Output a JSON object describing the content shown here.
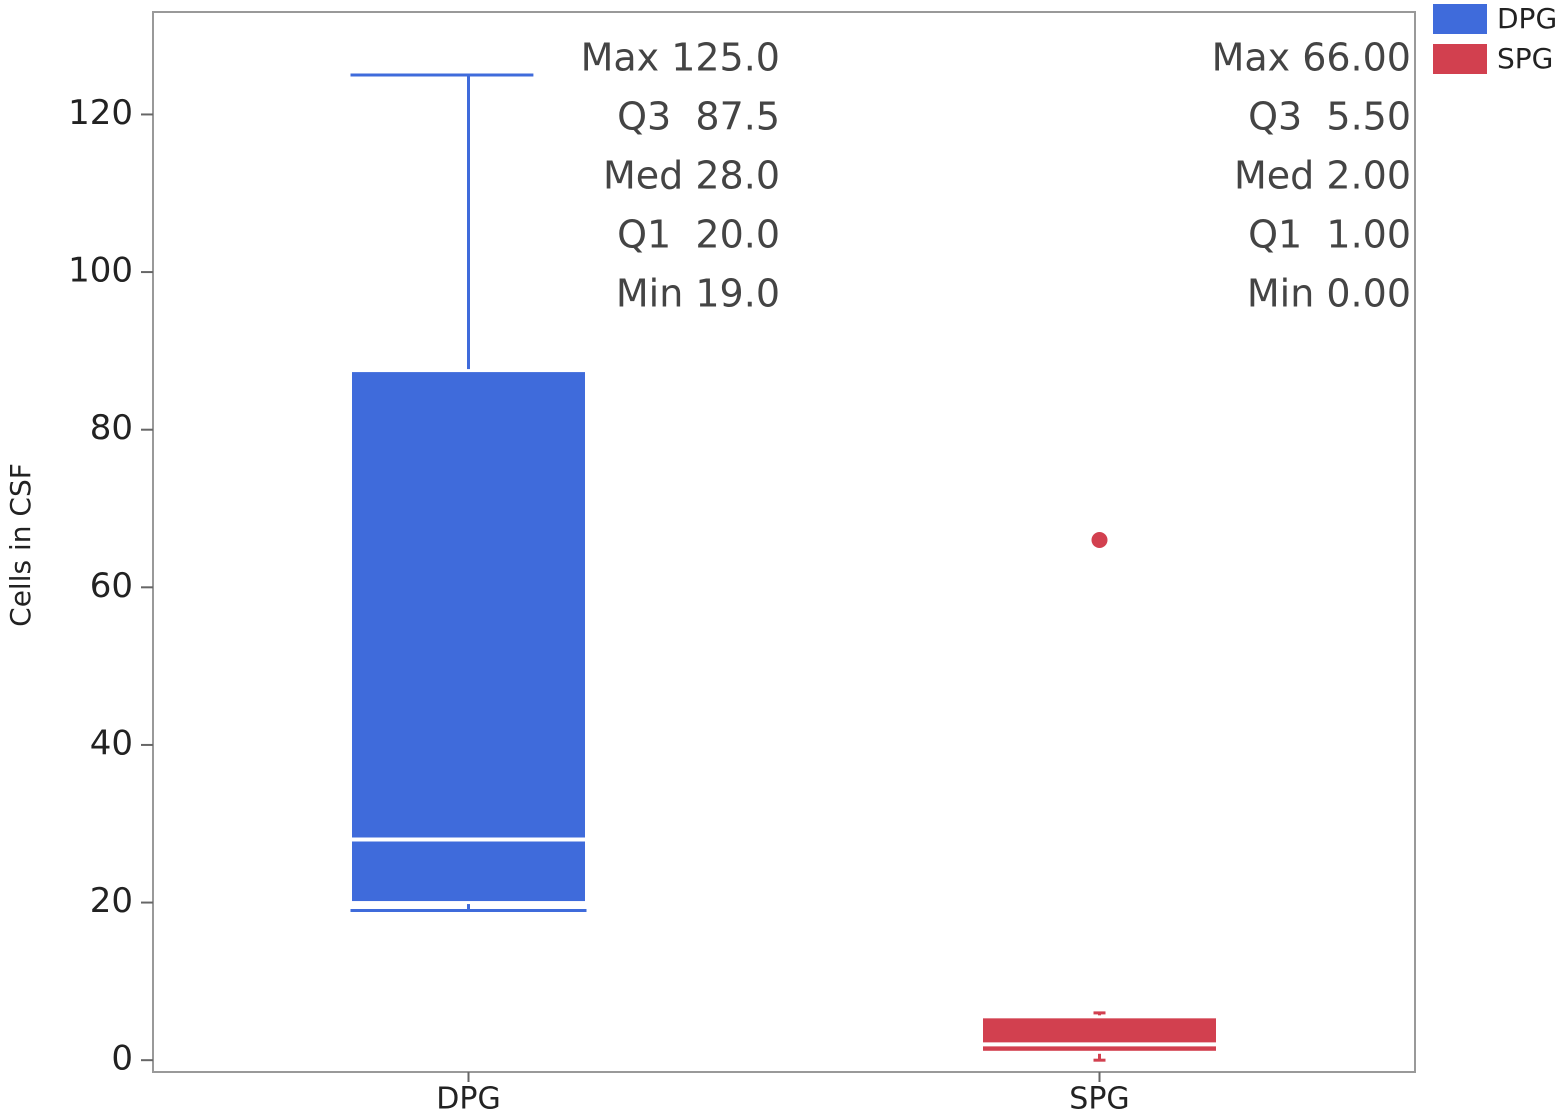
{
  "chart_data": {
    "type": "box",
    "y_label": "Cells in CSF",
    "categories": [
      "DPG",
      "SPG"
    ],
    "series": [
      {
        "name": "DPG",
        "color": "#3f6bdb",
        "min": 19,
        "q1": 20,
        "median": 28,
        "q3": 87.5,
        "max": 125,
        "whisker_low": 19,
        "whisker_high": 125,
        "outliers": [],
        "labels": [
          "Max 125.0",
          "Q3  87.5",
          "Med 28.0",
          "Q1  20.0",
          "Min 19.0"
        ]
      },
      {
        "name": "SPG",
        "color": "#d2404f",
        "min": 0,
        "q1": 1,
        "median": 2,
        "q3": 5.5,
        "max": 66,
        "whisker_low": 0,
        "whisker_high": 6,
        "outliers": [
          66
        ],
        "labels": [
          "Max 66.00",
          "Q3  5.50",
          "Med 2.00",
          "Q1  1.00",
          "Min 0.00"
        ]
      }
    ],
    "ylim": [
      -1.5,
      133
    ],
    "yticks": [
      0,
      20,
      40,
      60,
      80,
      100,
      120
    ],
    "legend": "upper right"
  }
}
